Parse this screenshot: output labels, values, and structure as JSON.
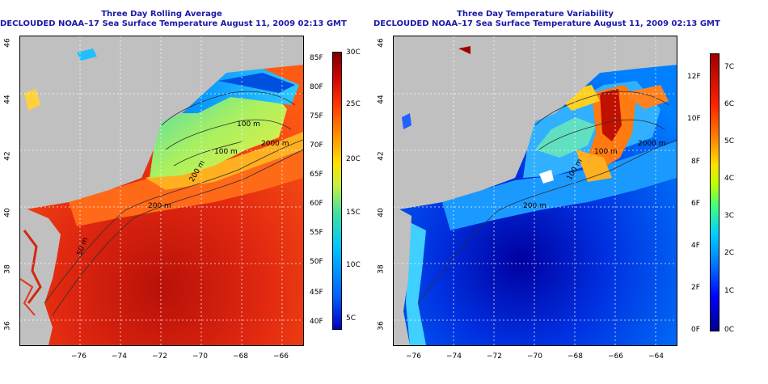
{
  "left_panel": {
    "title_line1": "Three Day Rolling Average",
    "title_line2": "DECLOUDED NOAA–17 Sea Surface Temperature August 11, 2009 02:13 GMT",
    "contours": [
      "100 m",
      "100 m",
      "200 m",
      "2000 m",
      "200 m",
      "50 m"
    ],
    "colorbar_f": [
      "85F",
      "80F",
      "75F",
      "70F",
      "65F",
      "60F",
      "55F",
      "50F",
      "45F",
      "40F"
    ],
    "colorbar_c": [
      "30C",
      "25C",
      "20C",
      "15C",
      "10C",
      "5C"
    ]
  },
  "right_panel": {
    "title_line1": "Three Day Temperature Variability",
    "title_line2": "DECLOUDED NOAA–17 Sea Surface Temperature August 11, 2009 02:13 GMT",
    "contours": [
      "100 m",
      "100 m",
      "2000 m",
      "200 m"
    ],
    "colorbar_f": [
      "12F",
      "10F",
      "8F",
      "6F",
      "4F",
      "2F",
      "0F"
    ],
    "colorbar_c": [
      "7C",
      "6C",
      "5C",
      "4C",
      "3C",
      "2C",
      "1C",
      "0C"
    ]
  },
  "x_ticks": [
    "−76",
    "−74",
    "−72",
    "−70",
    "−68",
    "−66",
    "−64"
  ],
  "y_ticks": [
    "46",
    "44",
    "42",
    "40",
    "38",
    "36"
  ],
  "colors": {
    "land": "#c0c0c0",
    "title": "#1a1aa8",
    "sst_scale": [
      "#0000c8",
      "#0060ff",
      "#00c8ff",
      "#40e0a0",
      "#c8f040",
      "#ffe000",
      "#ff9000",
      "#ff3000",
      "#c80000",
      "#800000"
    ],
    "var_scale": [
      "#00008c",
      "#0000ff",
      "#0080ff",
      "#00d0ff",
      "#40ff80",
      "#c0ff00",
      "#ffe000",
      "#ff8000",
      "#ff2000",
      "#a00000"
    ]
  }
}
